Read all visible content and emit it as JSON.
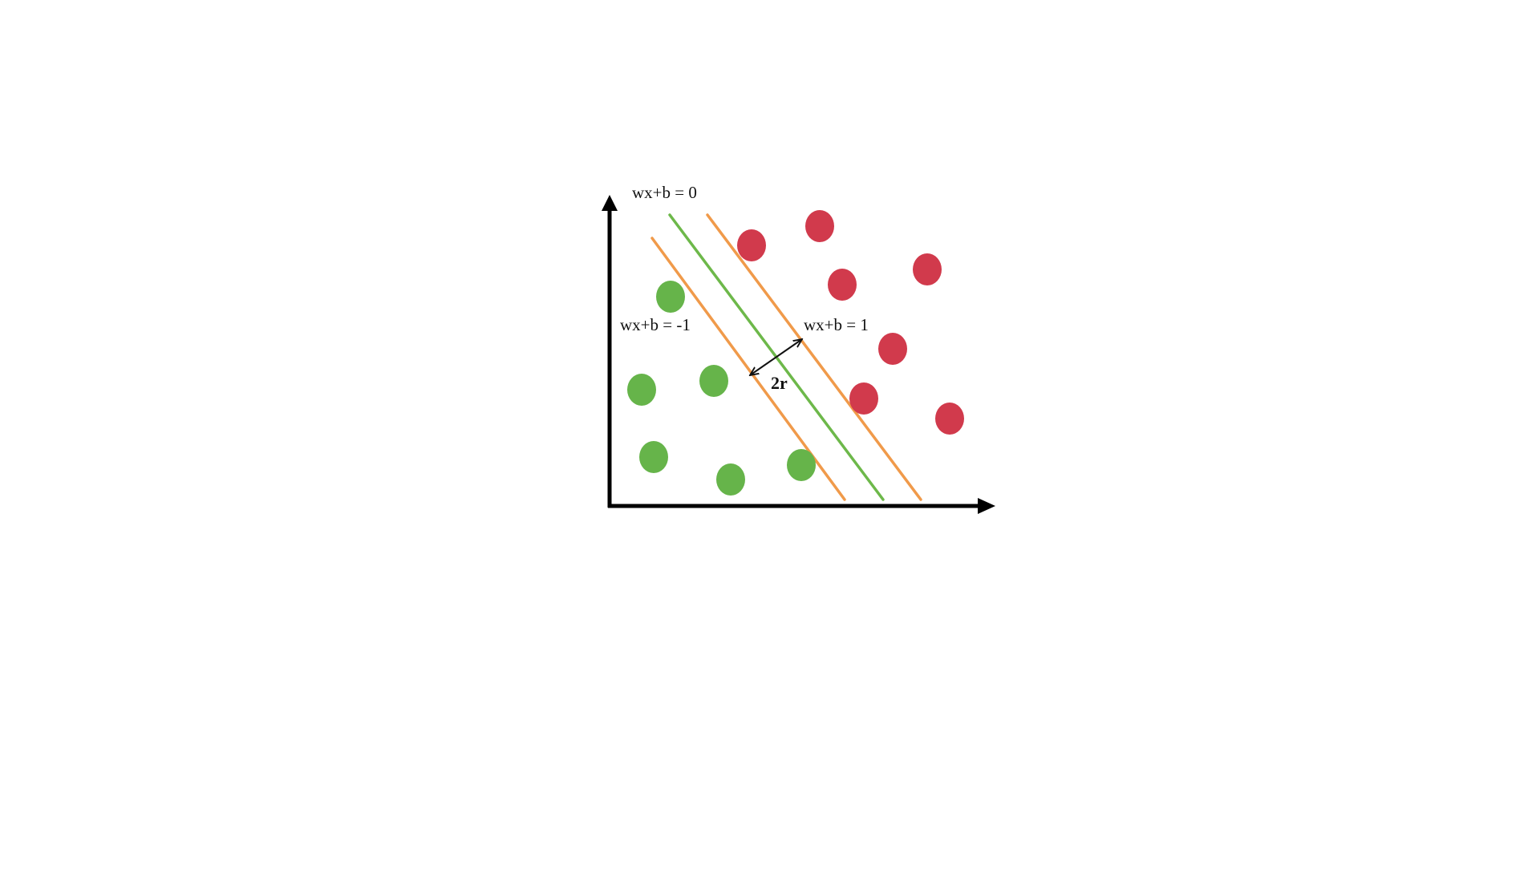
{
  "labels": {
    "hyperplane": "wx+b = 0",
    "negative_margin": "wx+b = -1",
    "positive_margin": "wx+b = 1",
    "margin_width": "2r"
  },
  "colors": {
    "axis": "#000000",
    "hyperplane": "#6db84a",
    "margin_line": "#f09a4a",
    "class_negative": "#66b44a",
    "class_positive": "#d13a4c",
    "arrow": "#111111"
  }
}
